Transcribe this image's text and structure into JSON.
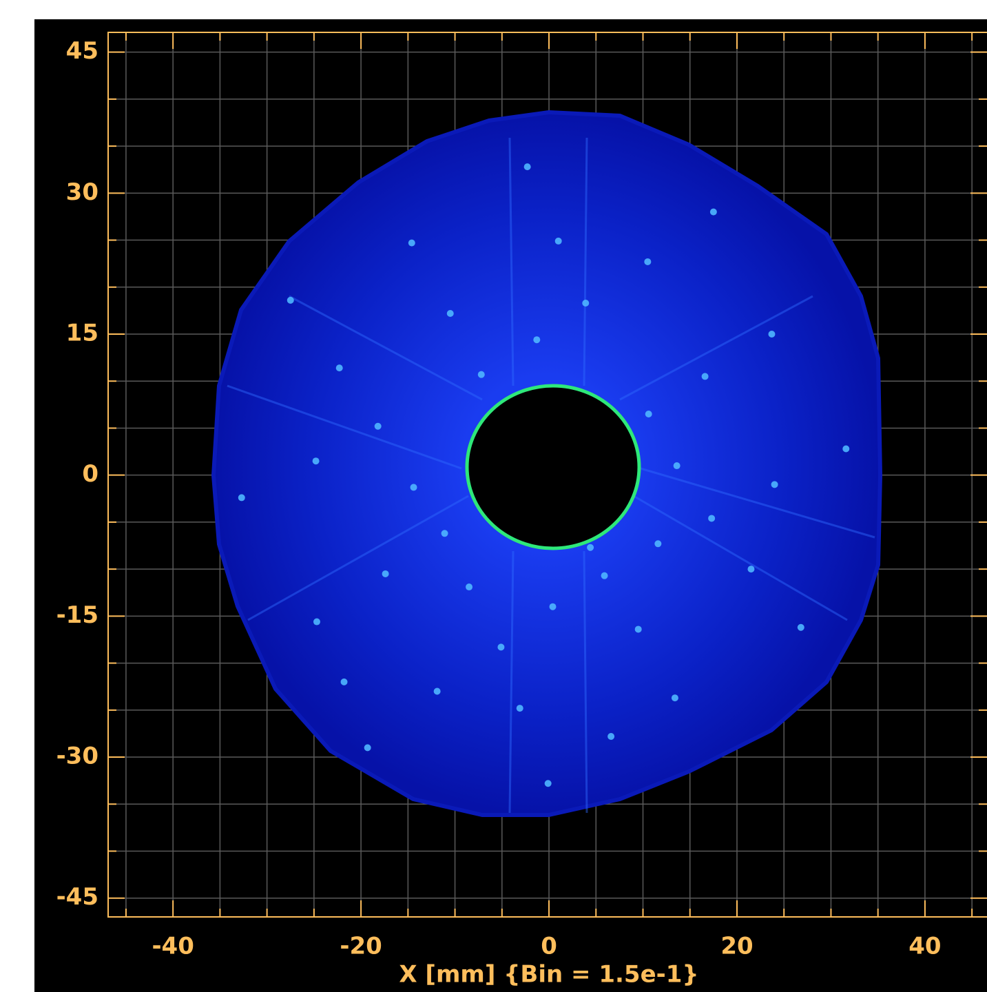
{
  "chart_data": {
    "type": "scatter",
    "x_label": "X [mm] {Bin = 1.5e-1}",
    "xlim": [
      -46.9,
      46.6
    ],
    "ylim": [
      -47,
      47.1
    ],
    "xticks": [
      -40,
      -20,
      0,
      20,
      40
    ],
    "yticks": [
      45,
      30,
      15,
      0,
      -15,
      -30,
      -45
    ],
    "x_minor_ticks": [
      -45,
      -35,
      -30,
      -25,
      -15,
      -10,
      -5,
      5,
      10,
      15,
      25,
      30,
      35,
      45
    ],
    "y_minor_ticks": [
      40,
      35,
      25,
      20,
      10,
      5,
      -5,
      -10,
      -20,
      -25,
      -35,
      -40
    ],
    "grid": true,
    "color": "#4fb6ff",
    "axis_color": "#ffbe5c",
    "x": [
      -2.3,
      -14.6,
      1.0,
      17.5,
      10.5,
      3.9,
      -10.5,
      -1.3,
      23.7,
      -27.5,
      -22.3,
      -7.2,
      16.6,
      -18.2,
      10.6,
      -24.8,
      31.6,
      -32.7,
      13.6,
      24.0,
      -14.4,
      17.3,
      -11.1,
      11.6,
      4.4,
      5.9,
      -17.4,
      -8.5,
      21.5,
      0.4,
      -24.7,
      9.5,
      26.8,
      -5.1,
      -11.9,
      13.4,
      -3.1,
      6.6,
      -19.3,
      -0.1,
      -21.8
    ],
    "values": [
      32.8,
      24.7,
      24.9,
      28.0,
      22.7,
      18.3,
      17.2,
      14.4,
      15.0,
      18.6,
      11.4,
      10.7,
      10.5,
      5.2,
      6.5,
      1.5,
      2.8,
      -2.4,
      1.0,
      -1.0,
      -1.3,
      -4.6,
      -6.2,
      -7.3,
      -7.7,
      -10.7,
      -10.5,
      -11.9,
      -10.0,
      -14.0,
      -15.6,
      -16.4,
      -16.2,
      -18.3,
      -23.0,
      -23.7,
      -24.8,
      -27.8,
      -29.0,
      -32.8,
      -22.0
    ]
  }
}
